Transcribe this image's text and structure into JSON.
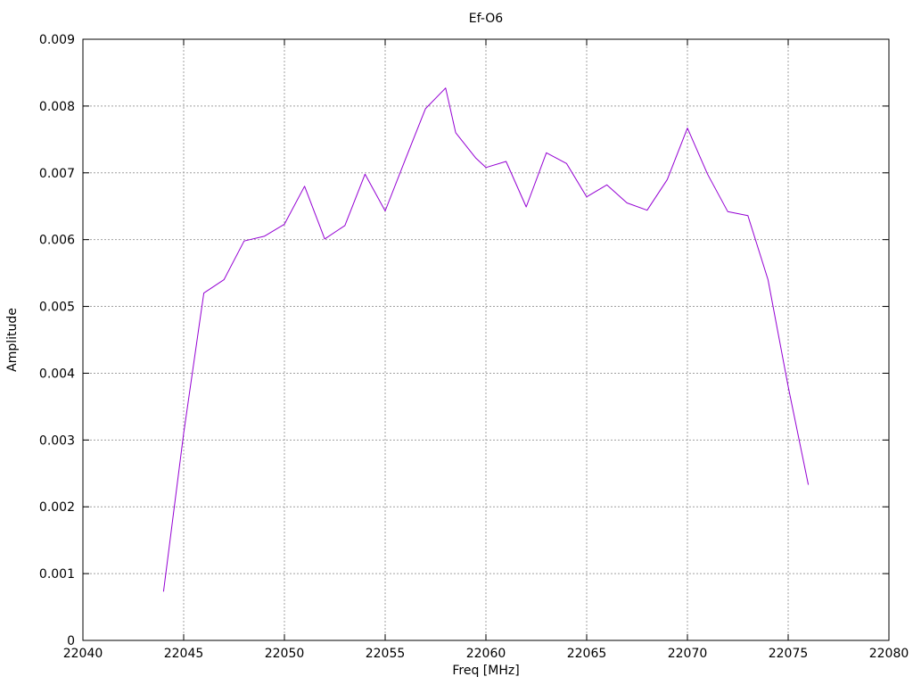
{
  "chart_data": {
    "type": "line",
    "title": "Ef-O6",
    "xlabel": "Freq [MHz]",
    "ylabel": "Amplitude",
    "xlim": [
      22040,
      22080
    ],
    "ylim": [
      0,
      0.009
    ],
    "grid": true,
    "legend_position": "none",
    "xticks": {
      "values": [
        22040,
        22045,
        22050,
        22055,
        22060,
        22065,
        22070,
        22075,
        22080
      ],
      "labels": [
        "22040",
        "22045",
        "22050",
        "22055",
        "22060",
        "22065",
        "22070",
        "22075",
        "22080"
      ]
    },
    "yticks": {
      "values": [
        0,
        0.001,
        0.002,
        0.003,
        0.004,
        0.005,
        0.006,
        0.007,
        0.008,
        0.009
      ],
      "labels": [
        "0",
        "0.001",
        "0.002",
        "0.003",
        "0.004",
        "0.005",
        "0.006",
        "0.007",
        "0.008",
        "0.009"
      ]
    },
    "series": [
      {
        "name": "Ef-O6",
        "color": "#9400d3",
        "x": [
          22044,
          22045,
          22046,
          22047,
          22048,
          22049,
          22050,
          22051,
          22052,
          22053,
          22054,
          22055,
          22056,
          22057,
          22058,
          22058.5,
          22059.5,
          22060,
          22061,
          22062,
          22063,
          22064,
          22065,
          22066,
          22067,
          22068,
          22069,
          22070,
          22071,
          22072,
          22073,
          22074,
          22075,
          22076
        ],
        "y": [
          0.00073,
          0.0031,
          0.0052,
          0.0054,
          0.00598,
          0.00605,
          0.00623,
          0.0068,
          0.00601,
          0.00621,
          0.00698,
          0.00643,
          0.0072,
          0.00796,
          0.00827,
          0.0076,
          0.00722,
          0.00708,
          0.00717,
          0.00649,
          0.0073,
          0.00714,
          0.00664,
          0.00682,
          0.00655,
          0.00644,
          0.0069,
          0.00767,
          0.00698,
          0.00642,
          0.00636,
          0.0054,
          0.0038,
          0.00233
        ]
      }
    ],
    "colors": {
      "line": "#9400d3",
      "grid": "#a0a0a0",
      "border": "#000000",
      "text": "#000000",
      "background": "#ffffff"
    }
  }
}
